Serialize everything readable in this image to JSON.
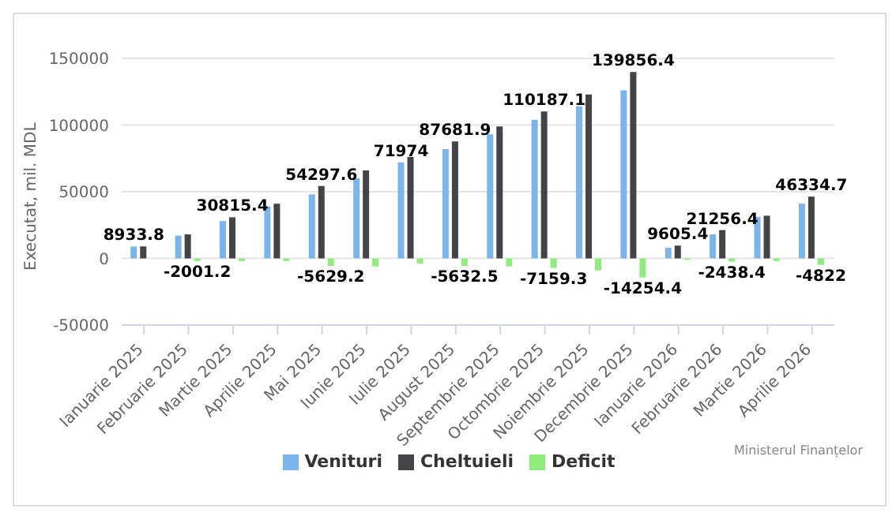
{
  "chart_data": {
    "type": "bar",
    "ylabel": "Executat, mil. MDL",
    "categories": [
      "Ianuarie 2025",
      "Februarie 2025",
      "Martie 2025",
      "Aprilie 2025",
      "Mai 2025",
      "Iunie 2025",
      "Iulie 2025",
      "August 2025",
      "Septembrie 2025",
      "Octombrie 2025",
      "Noiembrie 2025",
      "Decembrie 2025",
      "Ianuarie 2026",
      "Februarie 2026",
      "Martie 2026",
      "Aprilie 2026"
    ],
    "series": [
      {
        "name": "Venituri",
        "color": "#7cb5ec",
        "values": [
          8933.8,
          17000,
          28000,
          39000,
          48000,
          60000,
          71974,
          82000,
          93000,
          104000,
          114000,
          126000,
          8000,
          18000,
          31000,
          41000
        ],
        "value_labels": [
          "8933.8",
          null,
          null,
          null,
          null,
          null,
          "71974",
          null,
          null,
          null,
          null,
          null,
          null,
          null,
          null,
          null
        ]
      },
      {
        "name": "Cheltuieli",
        "color": "#434348",
        "values": [
          9000,
          18000,
          30815.4,
          41000,
          54297.6,
          66000,
          76000,
          87681.9,
          99000,
          110187.1,
          123000,
          139856.4,
          9605.4,
          21256.4,
          32000,
          46334.7
        ],
        "value_labels": [
          null,
          null,
          "30815.4",
          null,
          "54297.6",
          null,
          null,
          "87681.9",
          null,
          "110187.1",
          null,
          "139856.4",
          "9605.4",
          "21256.4",
          null,
          "46334.7"
        ]
      },
      {
        "name": "Deficit",
        "color": "#90ed7d",
        "values": [
          null,
          -2001.2,
          -2000,
          -2000,
          -5629.2,
          -6000,
          -4000,
          -5632.5,
          -6000,
          -7159.3,
          -9000,
          -14254.4,
          -1000,
          -2438.4,
          -2000,
          -4822
        ],
        "value_labels": [
          null,
          "-2001.2",
          null,
          null,
          "-5629.2",
          null,
          null,
          "-5632.5",
          null,
          "-7159.3",
          null,
          "-14254.4",
          null,
          "-2438.4",
          null,
          "-4822"
        ]
      }
    ],
    "ylim": [
      -50000,
      150000
    ],
    "yticks": [
      -50000,
      0,
      50000,
      100000,
      150000
    ],
    "grid": "y",
    "legend": "bottom",
    "annotations": [
      "Ministerul Finanțelor"
    ]
  }
}
